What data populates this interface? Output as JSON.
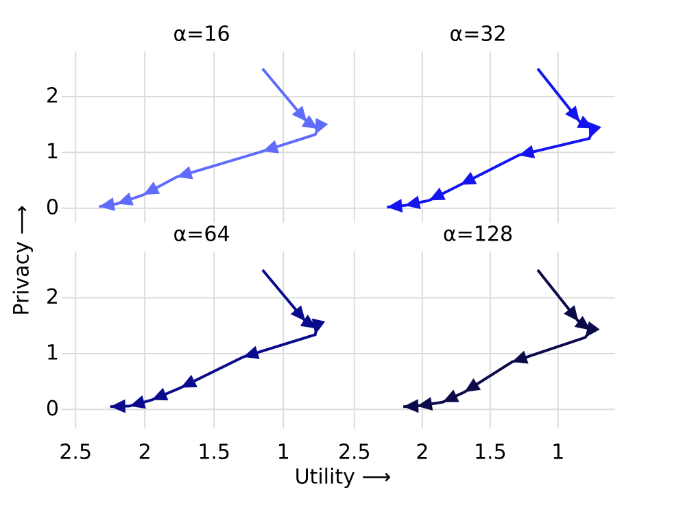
{
  "xlabel": "Utility ⟶",
  "ylabel": "Privacy ⟶",
  "chart_data": [
    {
      "type": "line",
      "title": "α=16",
      "color": "#5f6bfa",
      "x": [
        1.15,
        0.83,
        0.75,
        0.77,
        1.15,
        1.77,
        2.01,
        2.2,
        2.33
      ],
      "values": [
        2.5,
        1.55,
        1.42,
        1.32,
        1.02,
        0.56,
        0.24,
        0.08,
        0.03
      ],
      "xlim": [
        2.6,
        0.58
      ],
      "ylim": [
        -0.26,
        2.81
      ],
      "xticks": [
        2.5,
        2,
        1.5,
        1
      ],
      "yticks": [
        0,
        1,
        2
      ],
      "grid": true
    },
    {
      "type": "line",
      "title": "α=32",
      "color": "#1414f0",
      "x": [
        1.15,
        0.84,
        0.74,
        0.77,
        1.29,
        1.72,
        1.95,
        2.13,
        2.26
      ],
      "values": [
        2.5,
        1.55,
        1.43,
        1.25,
        0.95,
        0.42,
        0.14,
        0.05,
        0.02
      ],
      "xlim": [
        2.6,
        0.58
      ],
      "ylim": [
        -0.26,
        2.81
      ],
      "xticks": [
        2.5,
        2,
        1.5,
        1
      ],
      "yticks": [
        0,
        1,
        2
      ],
      "grid": true
    },
    {
      "type": "line",
      "title": "α=64",
      "color": "#0a0a8c",
      "x": [
        1.15,
        0.84,
        0.76,
        0.77,
        1.29,
        1.74,
        1.95,
        2.11,
        2.25
      ],
      "values": [
        2.5,
        1.58,
        1.45,
        1.34,
        0.94,
        0.39,
        0.17,
        0.06,
        0.05
      ],
      "xlim": [
        2.6,
        0.58
      ],
      "ylim": [
        -0.34,
        2.83
      ],
      "xticks": [
        2.5,
        2,
        1.5,
        1
      ],
      "yticks": [
        0,
        1,
        2
      ],
      "grid": true
    },
    {
      "type": "line",
      "title": "α=128",
      "color": "#0b0b4a",
      "x": [
        1.15,
        0.85,
        0.76,
        0.8,
        1.34,
        1.69,
        1.85,
        2.04,
        2.14
      ],
      "values": [
        2.5,
        1.58,
        1.42,
        1.29,
        0.85,
        0.31,
        0.13,
        0.06,
        0.05
      ],
      "xlim": [
        2.6,
        0.58
      ],
      "ylim": [
        -0.34,
        2.83
      ],
      "xticks": [
        2.5,
        2,
        1.5,
        1
      ],
      "yticks": [
        0,
        1,
        2
      ],
      "grid": true
    }
  ]
}
